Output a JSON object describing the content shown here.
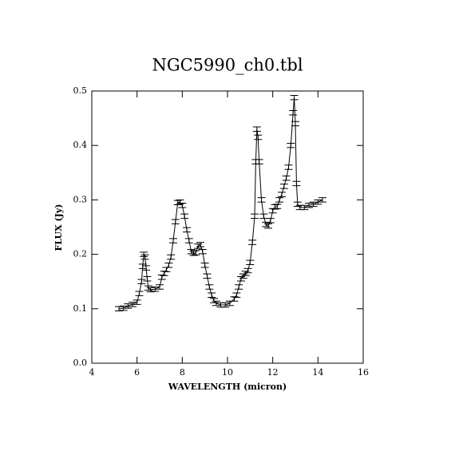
{
  "chart_data": {
    "type": "line",
    "title": "NGC5990_ch0.tbl",
    "x_label": "WAVELENGTH (micron)",
    "y_label": "FLUX (Jy)",
    "x": [
      5.2,
      5.4,
      5.6,
      5.8,
      6.0,
      6.1,
      6.2,
      6.25,
      6.3,
      6.35,
      6.4,
      6.45,
      6.5,
      6.6,
      6.8,
      7.0,
      7.1,
      7.2,
      7.3,
      7.4,
      7.5,
      7.6,
      7.7,
      7.8,
      7.9,
      8.0,
      8.1,
      8.2,
      8.3,
      8.4,
      8.5,
      8.6,
      8.7,
      8.8,
      8.9,
      9.0,
      9.1,
      9.2,
      9.3,
      9.4,
      9.5,
      9.7,
      9.9,
      10.1,
      10.3,
      10.4,
      10.5,
      10.6,
      10.7,
      10.8,
      10.9,
      11.0,
      11.1,
      11.2,
      11.25,
      11.3,
      11.35,
      11.4,
      11.5,
      11.6,
      11.7,
      11.8,
      11.9,
      12.0,
      12.1,
      12.2,
      12.3,
      12.4,
      12.5,
      12.6,
      12.7,
      12.8,
      12.9,
      12.95,
      13.0,
      13.05,
      13.1,
      13.2,
      13.4,
      13.6,
      13.8,
      14.0,
      14.2
    ],
    "values": [
      0.1,
      0.101,
      0.105,
      0.108,
      0.112,
      0.128,
      0.15,
      0.178,
      0.2,
      0.195,
      0.175,
      0.155,
      0.138,
      0.135,
      0.136,
      0.14,
      0.158,
      0.165,
      0.172,
      0.18,
      0.195,
      0.225,
      0.26,
      0.295,
      0.296,
      0.29,
      0.27,
      0.245,
      0.225,
      0.205,
      0.202,
      0.203,
      0.215,
      0.218,
      0.205,
      0.18,
      0.16,
      0.14,
      0.125,
      0.115,
      0.11,
      0.107,
      0.107,
      0.11,
      0.118,
      0.125,
      0.14,
      0.155,
      0.16,
      0.165,
      0.17,
      0.185,
      0.222,
      0.27,
      0.37,
      0.43,
      0.415,
      0.37,
      0.3,
      0.27,
      0.255,
      0.252,
      0.262,
      0.28,
      0.287,
      0.288,
      0.3,
      0.31,
      0.325,
      0.34,
      0.36,
      0.4,
      0.46,
      0.488,
      0.44,
      0.33,
      0.292,
      0.286,
      0.286,
      0.29,
      0.292,
      0.296,
      0.3
    ],
    "errors": [
      0.004,
      0.004,
      0.004,
      0.004,
      0.004,
      0.004,
      0.004,
      0.004,
      0.004,
      0.004,
      0.004,
      0.004,
      0.004,
      0.004,
      0.004,
      0.004,
      0.004,
      0.004,
      0.004,
      0.004,
      0.004,
      0.004,
      0.004,
      0.004,
      0.004,
      0.004,
      0.004,
      0.004,
      0.004,
      0.004,
      0.004,
      0.004,
      0.004,
      0.004,
      0.004,
      0.004,
      0.004,
      0.004,
      0.004,
      0.004,
      0.004,
      0.004,
      0.004,
      0.004,
      0.004,
      0.004,
      0.004,
      0.004,
      0.004,
      0.004,
      0.004,
      0.004,
      0.004,
      0.004,
      0.004,
      0.004,
      0.004,
      0.004,
      0.004,
      0.004,
      0.004,
      0.004,
      0.004,
      0.004,
      0.004,
      0.004,
      0.004,
      0.004,
      0.004,
      0.004,
      0.004,
      0.004,
      0.004,
      0.004,
      0.004,
      0.004,
      0.004,
      0.004,
      0.004,
      0.004,
      0.004,
      0.004,
      0.004
    ],
    "color": "#000000",
    "xlim": [
      4,
      16
    ],
    "xticks": [
      4,
      6,
      8,
      10,
      12,
      14,
      16
    ],
    "ylim": [
      0,
      0.5
    ],
    "yticks": [
      {
        "value": 0,
        "label": "0.0"
      },
      0.1,
      0.2,
      0.3,
      0.4,
      0.5
    ]
  }
}
